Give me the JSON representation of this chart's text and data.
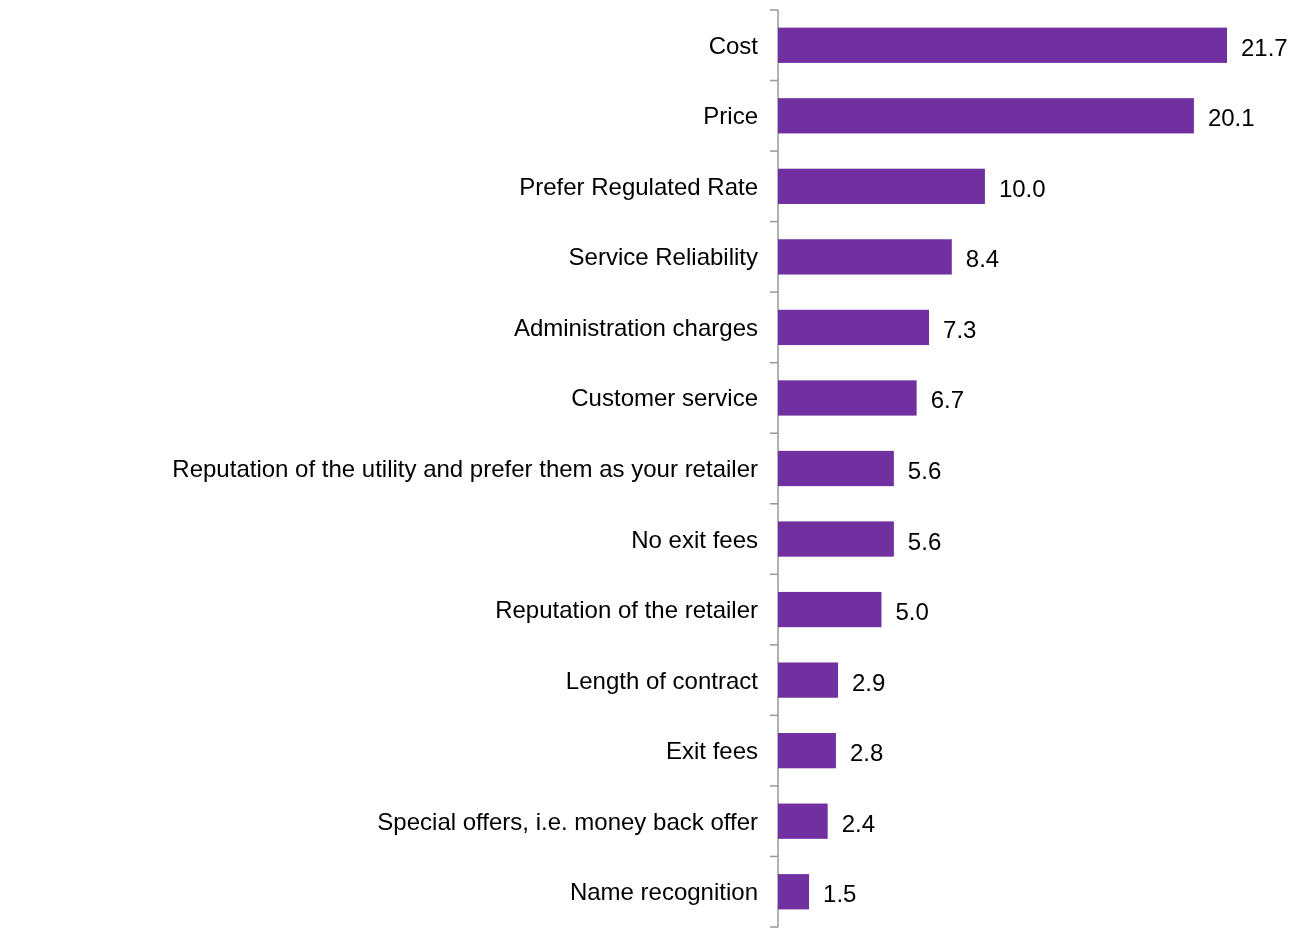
{
  "chart_data": {
    "type": "bar",
    "orientation": "horizontal",
    "categories": [
      "Cost",
      "Price",
      "Prefer Regulated Rate",
      "Service Reliability",
      "Administration charges",
      "Customer service",
      "Reputation of the utility and prefer them as your retailer",
      "No exit fees",
      "Reputation of the retailer",
      "Length of contract",
      "Exit fees",
      "Special offers, i.e. money back offer",
      "Name recognition"
    ],
    "values": [
      21.7,
      20.1,
      10.0,
      8.4,
      7.3,
      6.7,
      5.6,
      5.6,
      5.0,
      2.9,
      2.8,
      2.4,
      1.5
    ],
    "value_labels": [
      "21.7",
      "20.1",
      "10.0",
      "8.4",
      "7.3",
      "6.7",
      "5.6",
      "5.6",
      "5.0",
      "2.9",
      "2.8",
      "2.4",
      "1.5"
    ],
    "color": "#7030a0"
  }
}
